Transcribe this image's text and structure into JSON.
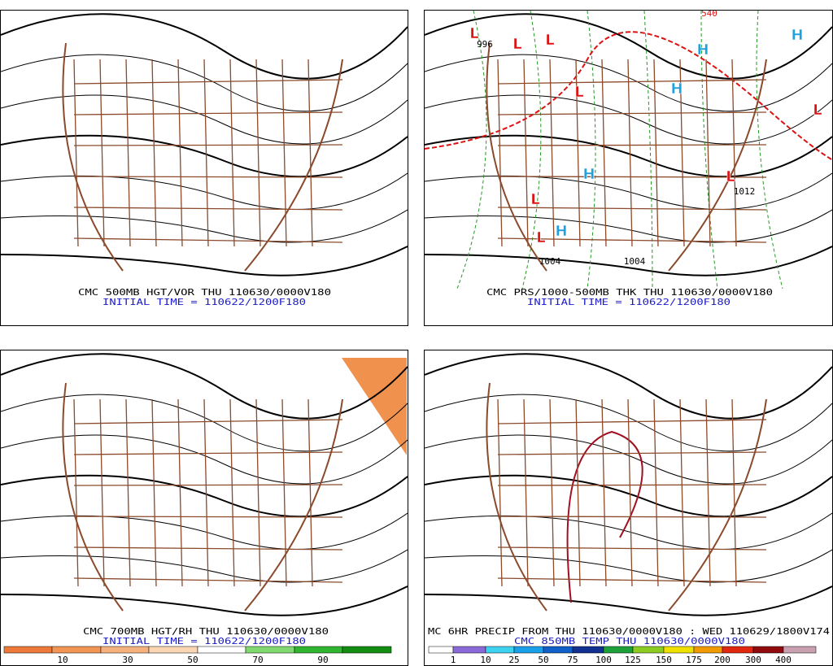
{
  "panels": [
    {
      "caption": "CMC 500MB HGT/VOR THU 110630/0000V180",
      "subcaption": "INITIAL TIME = 110622/1200F180"
    },
    {
      "caption": "CMC PRS/1000-500MB THK THU 110630/0000V180",
      "subcaption": "INITIAL TIME = 110622/1200F180",
      "labels": [
        "L",
        "L",
        "L",
        "L",
        "L",
        "L",
        "L",
        "L",
        "H",
        "H",
        "H",
        "H",
        "H",
        "996",
        "1004",
        "1004",
        "1012",
        "540"
      ]
    },
    {
      "caption": "CMC 700MB HGT/RH THU 110630/0000V180",
      "subcaption": "INITIAL TIME = 110622/1200F180",
      "colorbar": [
        10,
        30,
        50,
        70,
        90
      ]
    },
    {
      "caption": "MC 6HR PRECIP FROM THU 110630/0000V180 : WED 110629/1800V174",
      "subcaption": "CMC 850MB TEMP THU 110630/0000V180",
      "colorbar": [
        1,
        10,
        25,
        50,
        75,
        100,
        125,
        150,
        175,
        200,
        300,
        400
      ]
    }
  ]
}
